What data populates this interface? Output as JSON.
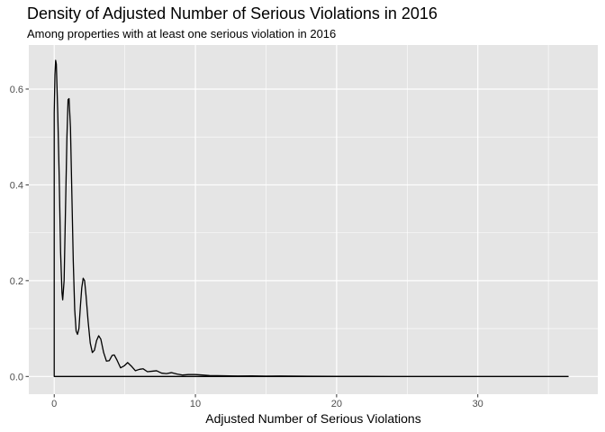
{
  "chart_data": {
    "type": "area",
    "title": "Density of Adjusted Number of Serious Violations in 2016",
    "subtitle": "Among properties with at least one serious violation in 2016",
    "xlabel": "Adjusted Number of Serious Violations",
    "ylabel": "",
    "xlim": [
      -1.8,
      38.5
    ],
    "ylim": [
      -0.037,
      0.692
    ],
    "x_ticks": [
      0,
      10,
      20,
      30
    ],
    "x_tick_labels": [
      "0",
      "10",
      "20",
      "30"
    ],
    "y_ticks": [
      0.0,
      0.2,
      0.4,
      0.6
    ],
    "y_tick_labels": [
      "0.0",
      "0.2",
      "0.4",
      "0.6"
    ],
    "grid": true,
    "legend": "none",
    "background_color": "#e5e5e5",
    "grid_color": "#ffffff",
    "line_color": "#000000",
    "x_range_start": 0,
    "x_range_end": 36.4,
    "density_points": [
      [
        0.0,
        0.0
      ],
      [
        0.0,
        0.55
      ],
      [
        0.05,
        0.63
      ],
      [
        0.1,
        0.66
      ],
      [
        0.15,
        0.652
      ],
      [
        0.25,
        0.55
      ],
      [
        0.35,
        0.42
      ],
      [
        0.45,
        0.26
      ],
      [
        0.55,
        0.175
      ],
      [
        0.6,
        0.16
      ],
      [
        0.7,
        0.2
      ],
      [
        0.8,
        0.35
      ],
      [
        0.9,
        0.5
      ],
      [
        0.98,
        0.578
      ],
      [
        1.05,
        0.58
      ],
      [
        1.15,
        0.52
      ],
      [
        1.25,
        0.38
      ],
      [
        1.35,
        0.24
      ],
      [
        1.45,
        0.14
      ],
      [
        1.55,
        0.095
      ],
      [
        1.65,
        0.088
      ],
      [
        1.75,
        0.1
      ],
      [
        1.85,
        0.145
      ],
      [
        1.95,
        0.185
      ],
      [
        2.05,
        0.205
      ],
      [
        2.15,
        0.2
      ],
      [
        2.25,
        0.17
      ],
      [
        2.4,
        0.115
      ],
      [
        2.55,
        0.07
      ],
      [
        2.7,
        0.05
      ],
      [
        2.85,
        0.055
      ],
      [
        3.0,
        0.075
      ],
      [
        3.15,
        0.085
      ],
      [
        3.3,
        0.078
      ],
      [
        3.5,
        0.05
      ],
      [
        3.7,
        0.032
      ],
      [
        3.9,
        0.033
      ],
      [
        4.1,
        0.044
      ],
      [
        4.25,
        0.045
      ],
      [
        4.45,
        0.034
      ],
      [
        4.7,
        0.018
      ],
      [
        4.95,
        0.022
      ],
      [
        5.2,
        0.029
      ],
      [
        5.45,
        0.022
      ],
      [
        5.75,
        0.012
      ],
      [
        6.05,
        0.015
      ],
      [
        6.3,
        0.016
      ],
      [
        6.6,
        0.01
      ],
      [
        6.95,
        0.011
      ],
      [
        7.25,
        0.012
      ],
      [
        7.6,
        0.007
      ],
      [
        7.95,
        0.006
      ],
      [
        8.3,
        0.008
      ],
      [
        8.7,
        0.005
      ],
      [
        9.1,
        0.003
      ],
      [
        9.5,
        0.004
      ],
      [
        10.0,
        0.004
      ],
      [
        10.5,
        0.003
      ],
      [
        11.0,
        0.002
      ],
      [
        12.0,
        0.0015
      ],
      [
        13.0,
        0.001
      ],
      [
        14.0,
        0.0012
      ],
      [
        15.0,
        0.0008
      ],
      [
        16.0,
        0.001
      ],
      [
        17.0,
        0.0008
      ],
      [
        18.0,
        0.0005
      ],
      [
        20.0,
        0.0003
      ],
      [
        22.0,
        0.0002
      ],
      [
        24.0,
        0.0001
      ],
      [
        28.0,
        0.0001
      ],
      [
        32.0,
        0.0
      ],
      [
        36.4,
        0.0
      ]
    ]
  }
}
